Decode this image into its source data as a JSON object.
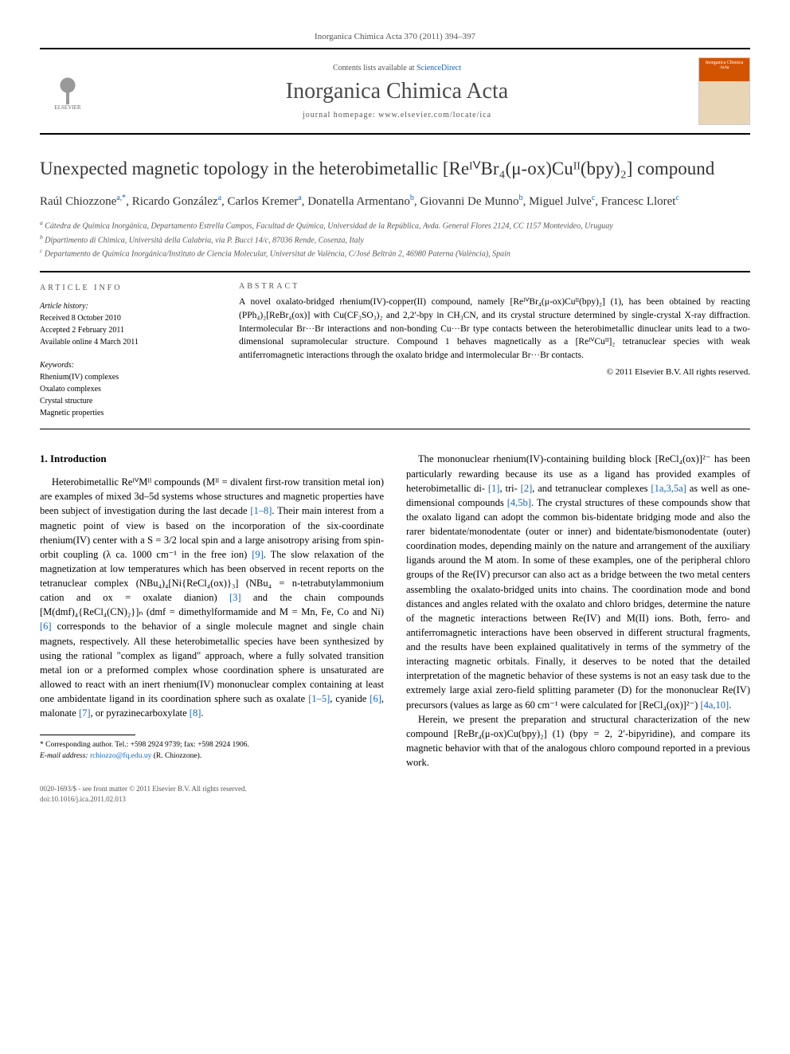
{
  "header": {
    "citation": "Inorganica Chimica Acta 370 (2011) 394–397",
    "contents_prefix": "Contents lists available at ",
    "contents_link": "ScienceDirect",
    "journal_name": "Inorganica Chimica Acta",
    "homepage_prefix": "journal homepage: ",
    "homepage_url": "www.elsevier.com/locate/ica",
    "elsevier_label": "ELSEVIER",
    "cover_text": "Inorganica Chimica Acta"
  },
  "title": "Unexpected magnetic topology in the heterobimetallic [ReᴵⱽBr₄(μ-ox)Cuᴵᴵ(bpy)₂] compound",
  "authors": [
    {
      "name": "Raúl Chiozzone",
      "aff": "a,*"
    },
    {
      "name": "Ricardo González",
      "aff": "a"
    },
    {
      "name": "Carlos Kremer",
      "aff": "a"
    },
    {
      "name": "Donatella Armentano",
      "aff": "b"
    },
    {
      "name": "Giovanni De Munno",
      "aff": "b"
    },
    {
      "name": "Miguel Julve",
      "aff": "c"
    },
    {
      "name": "Francesc Lloret",
      "aff": "c"
    }
  ],
  "affiliations": {
    "a": "Cátedra de Química Inorgánica, Departamento Estrella Campos, Facultad de Química, Universidad de la República, Avda. General Flores 2124, CC 1157 Montevideo, Uruguay",
    "b": "Dipartimento di Chimica, Università della Calabria, via P. Bucci 14/c, 87036 Rende, Cosenza, Italy",
    "c": "Departamento de Química Inorgánica/Instituto de Ciencia Molecular, Universitat de València, C/José Beltrán 2, 46980 Paterna (València), Spain"
  },
  "article_info": {
    "head": "ARTICLE INFO",
    "history_label": "Article history:",
    "received": "Received 8 October 2010",
    "accepted": "Accepted 2 February 2011",
    "online": "Available online 4 March 2011",
    "keywords_label": "Keywords:",
    "keywords": [
      "Rhenium(IV) complexes",
      "Oxalato complexes",
      "Crystal structure",
      "Magnetic properties"
    ]
  },
  "abstract": {
    "head": "ABSTRACT",
    "text": "A novel oxalato-bridged rhenium(IV)-copper(II) compound, namely [ReᴵⱽBr₄(μ-ox)Cuᴵᴵ(bpy)₂] (1), has been obtained by reacting (PPh₄)₂[ReBr₄(ox)] with Cu(CF₃SO₃)₂ and 2,2′-bpy in CH₃CN, and its crystal structure determined by single-crystal X-ray diffraction. Intermolecular Br···Br interactions and non-bonding Cu···Br type contacts between the heterobimetallic dinuclear units lead to a two-dimensional supramolecular structure. Compound 1 behaves magnetically as a [ReᴵⱽCuᴵᴵ]₂ tetranuclear species with weak antiferromagnetic interactions through the oxalato bridge and intermolecular Br···Br contacts.",
    "copyright": "© 2011 Elsevier B.V. All rights reserved."
  },
  "body": {
    "section_head": "1. Introduction",
    "col1_p1": "Heterobimetallic ReᴵⱽMᴵᴵ compounds (Mᴵᴵ = divalent first-row transition metal ion) are examples of mixed 3d–5d systems whose structures and magnetic properties have been subject of investigation during the last decade [1–8]. Their main interest from a magnetic point of view is based on the incorporation of the six-coordinate rhenium(IV) center with a S = 3/2 local spin and a large anisotropy arising from spin-orbit coupling (λ ca. 1000 cm⁻¹ in the free ion) [9]. The slow relaxation of the magnetization at low temperatures which has been observed in recent reports on the tetranuclear complex (NBu₄)₄[Ni{ReCl₄(ox)}₃] (NBu₄ = n-tetrabutylammonium cation and ox = oxalate dianion) [3] and the chain compounds [M(dmf)₄{ReCl₄(CN)₂}]ₙ (dmf = dimethylformamide and M = Mn, Fe, Co and Ni) [6] corresponds to the behavior of a single molecule magnet and single chain magnets, respectively. All these heterobimetallic species have been synthesized by using the rational \"complex as ligand\" approach, where a fully solvated transition metal ion or a preformed complex whose coordination sphere is unsaturated are allowed to react with an inert rhenium(IV) mononuclear complex containing at least one ambidentate ligand in its coordination sphere such as oxalate [1–5], cyanide [6], malonate [7], or pyrazinecarboxylate [8].",
    "col2_p1": "The mononuclear rhenium(IV)-containing building block [ReCl₄(ox)]²⁻ has been particularly rewarding because its use as a ligand has provided examples of heterobimetallic di- [1], tri- [2], and tetranuclear complexes [1a,3,5a] as well as one-dimensional compounds [4,5b]. The crystal structures of these compounds show that the oxalato ligand can adopt the common bis-bidentate bridging mode and also the rarer bidentate/monodentate (outer or inner) and bidentate/bismonodentate (outer) coordination modes, depending mainly on the nature and arrangement of the auxiliary ligands around the M atom. In some of these examples, one of the peripheral chloro groups of the Re(IV) precursor can also act as a bridge between the two metal centers assembling the oxalato-bridged units into chains. The coordination mode and bond distances and angles related with the oxalato and chloro bridges, determine the nature of the magnetic interactions between Re(IV) and M(II) ions. Both, ferro- and antiferromagnetic interactions have been observed in different structural fragments, and the results have been explained qualitatively in terms of the symmetry of the interacting magnetic orbitals. Finally, it deserves to be noted that the detailed interpretation of the magnetic behavior of these systems is not an easy task due to the extremely large axial zero-field splitting parameter (D) for the mononuclear Re(IV) precursors (values as large as 60 cm⁻¹ were calculated for [ReCl₄(ox)]²⁻) [4a,10].",
    "col2_p2": "Herein, we present the preparation and structural characterization of the new compound [ReBr₄(μ-ox)Cu(bpy)₂] (1) (bpy = 2, 2′-bipyridine), and compare its magnetic behavior with that of the analogous chloro compound reported in a previous work."
  },
  "footnote": {
    "corr_label": "* Corresponding author. Tel.: +598 2924 9739; fax: +598 2924 1906.",
    "email_label": "E-mail address:",
    "email": "rchiozzo@fq.edu.uy",
    "email_sfx": "(R. Chiozzone)."
  },
  "footer": {
    "line1": "0020-1693/$ - see front matter © 2011 Elsevier B.V. All rights reserved.",
    "line2": "doi:10.1016/j.ica.2011.02.013"
  },
  "colors": {
    "link": "#1565c0",
    "text": "#000000",
    "muted": "#555555",
    "cover_top": "#d35400"
  }
}
